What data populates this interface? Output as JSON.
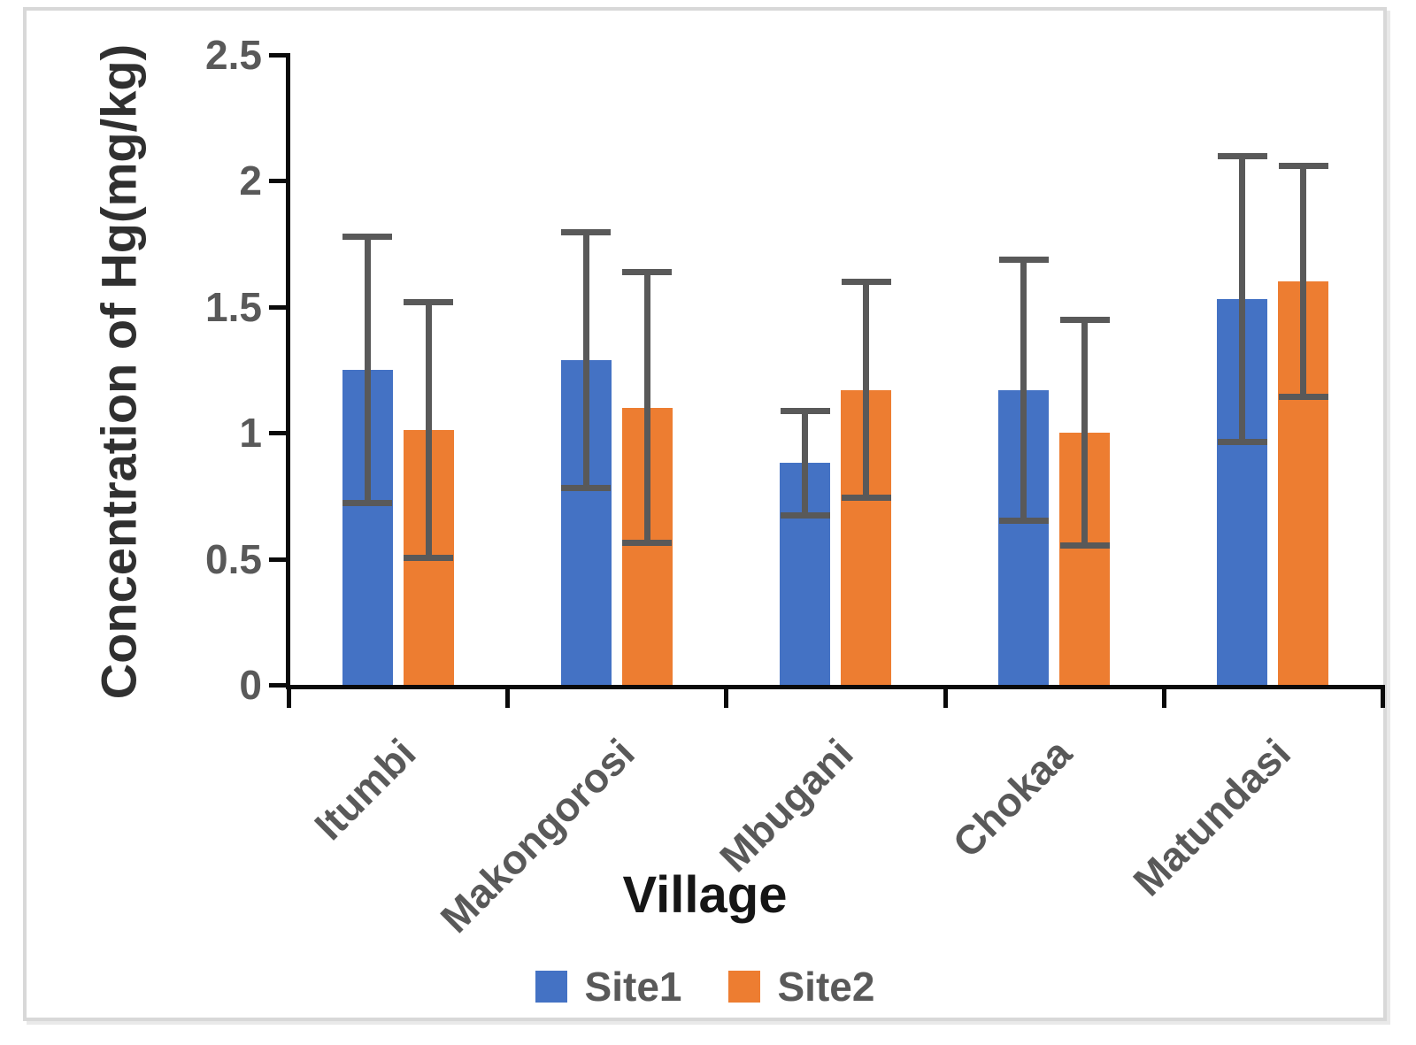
{
  "chart_data": {
    "type": "bar",
    "title": "",
    "xlabel": "Village",
    "ylabel": "Concentration of Hg(mg/kg)",
    "categories": [
      "Itumbi",
      "Makongorosi",
      "Mbugani",
      "Chokaa",
      "Matundasi"
    ],
    "series": [
      {
        "name": "Site1",
        "color": "#4472C4",
        "values": [
          1.25,
          1.29,
          0.88,
          1.17,
          1.53
        ],
        "errors": [
          0.54,
          0.52,
          0.22,
          0.53,
          0.58
        ]
      },
      {
        "name": "Site2",
        "color": "#ED7D31",
        "values": [
          1.01,
          1.1,
          1.17,
          1.0,
          1.6
        ],
        "errors": [
          0.52,
          0.55,
          0.44,
          0.46,
          0.47
        ]
      }
    ],
    "ylim": [
      0,
      2.5
    ],
    "yticks": [
      0,
      0.5,
      1,
      1.5,
      2,
      2.5
    ],
    "ytick_labels": [
      "0",
      "0.5",
      "1",
      "1.5",
      "2",
      "2.5"
    ],
    "grid": false,
    "legend_position": "bottom",
    "error_bar_color": "#595959",
    "axis_color": "#0a0a0a",
    "tick_label_color": "#595959"
  }
}
